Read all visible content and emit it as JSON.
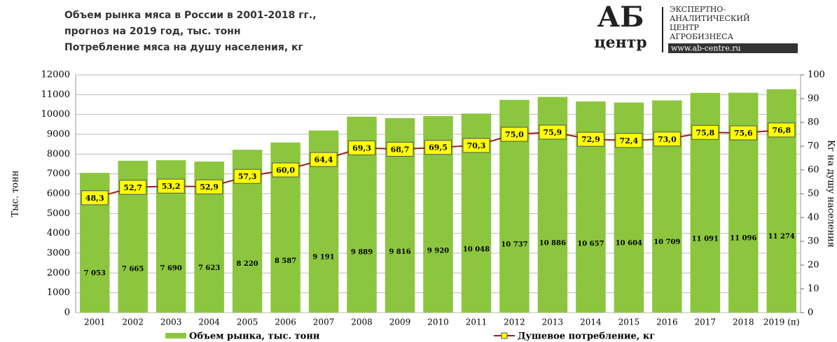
{
  "chart_data": {
    "type": "bar_line",
    "title": [
      "Объем рынка мяса в России в 2001-2018 гг.,",
      "прогноз  на 2019 год, тыс. тонн",
      "Потребление мяса на душу населения, кг"
    ],
    "logo": {
      "mark": "АБ",
      "word": "центр",
      "lines": [
        "ЭКСПЕРТНО-",
        "АНАЛИТИЧЕСКИЙ",
        "ЦЕНТР",
        "АГРОБИЗНЕСА"
      ],
      "url": "www.ab-centre.ru"
    },
    "ylabel": "Тыс. тонн",
    "y2label": "Кг на душу населения",
    "categories": [
      "2001",
      "2002",
      "2003",
      "2004",
      "2005",
      "2006",
      "2007",
      "2008",
      "2009",
      "2010",
      "2011",
      "2012",
      "2013",
      "2014",
      "2015",
      "2016",
      "2017",
      "2018",
      "2019 (п)"
    ],
    "series": [
      {
        "name": "Объем рынка, тыс. тонн",
        "color": "#8cc63f",
        "kind": "bar",
        "values": [
          7053,
          7665,
          7690,
          7623,
          8220,
          8587,
          9191,
          9889,
          9816,
          9920,
          10048,
          10737,
          10886,
          10657,
          10604,
          10709,
          11091,
          11096,
          11274
        ],
        "value_labels": [
          "7 053",
          "7 665",
          "7 690",
          "7 623",
          "8 220",
          "8 587",
          "9 191",
          "9 889",
          "9 816",
          "9 920",
          "10 048",
          "10 737",
          "10 886",
          "10 657",
          "10 604",
          "10 709",
          "11 091",
          "11 096",
          "11 274"
        ]
      },
      {
        "name": "Душевое потребление, кг",
        "color": "#9b2020",
        "kind": "line",
        "axis": "y2",
        "values": [
          48.3,
          52.7,
          53.2,
          52.9,
          57.3,
          60.0,
          64.4,
          69.3,
          68.7,
          69.5,
          70.3,
          75.0,
          75.9,
          72.9,
          72.4,
          73.0,
          75.8,
          75.6,
          76.8
        ],
        "value_labels": [
          "48,3",
          "52,7",
          "53,2",
          "52,9",
          "57,3",
          "60,0",
          "64,4",
          "69,3",
          "68,7",
          "69,5",
          "70,3",
          "75,0",
          "75,9",
          "72,9",
          "72,4",
          "73,0",
          "75,8",
          "75,6",
          "76,8"
        ]
      }
    ],
    "ylim": [
      0,
      12000
    ],
    "yticks": [
      0,
      1000,
      2000,
      3000,
      4000,
      5000,
      6000,
      7000,
      8000,
      9000,
      10000,
      11000,
      12000
    ],
    "y2lim": [
      0,
      100
    ],
    "y2ticks": [
      0,
      10,
      20,
      30,
      40,
      50,
      60,
      70,
      80,
      90,
      100
    ]
  }
}
